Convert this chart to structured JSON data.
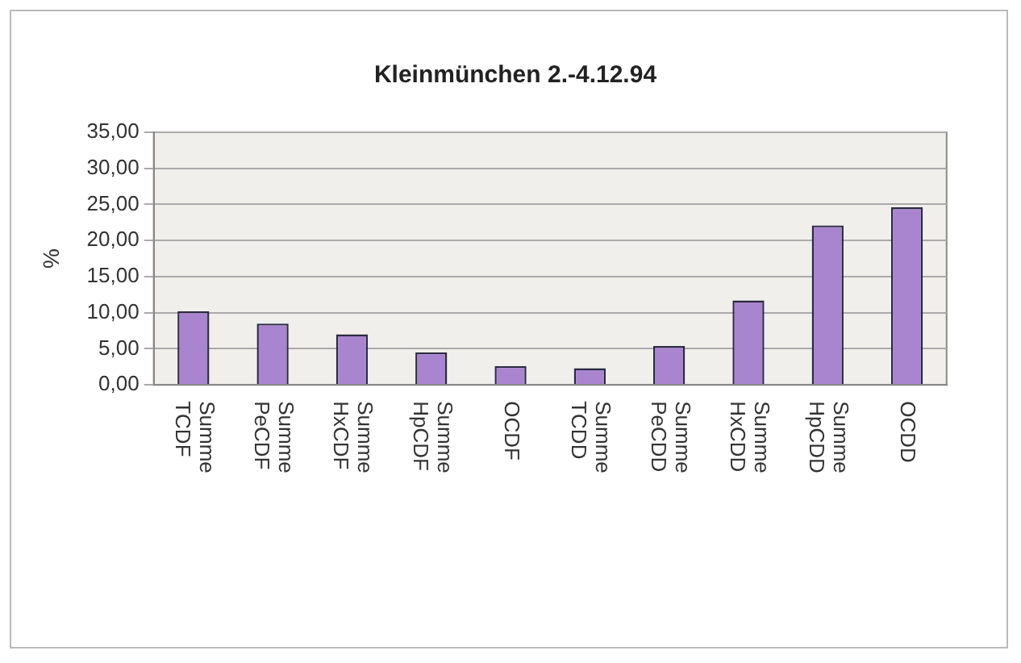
{
  "chart_data": {
    "type": "bar",
    "title": "Kleinmünchen 2.-4.12.94",
    "ylabel": "%",
    "categories": [
      "Summe TCDF",
      "Summe PeCDF",
      "Summe HxCDF",
      "Summe HpCDF",
      "OCDF",
      "Summe TCDD",
      "Summe PeCDD",
      "Summe HxCDD",
      "Summe HpCDD",
      "OCDD"
    ],
    "values": [
      10.2,
      8.5,
      7.0,
      4.5,
      2.6,
      2.3,
      5.4,
      11.7,
      22.1,
      24.6
    ],
    "color": "#a985cf",
    "ylim": [
      0,
      35
    ],
    "yticks": [
      {
        "value": 0,
        "label": "0,00"
      },
      {
        "value": 5,
        "label": "5,00"
      },
      {
        "value": 10,
        "label": "10,00"
      },
      {
        "value": 15,
        "label": "15,00"
      },
      {
        "value": 20,
        "label": "20,00"
      },
      {
        "value": 25,
        "label": "25,00"
      },
      {
        "value": 30,
        "label": "30,00"
      },
      {
        "value": 35,
        "label": "35,00"
      }
    ],
    "grid": "y",
    "legend": false
  }
}
